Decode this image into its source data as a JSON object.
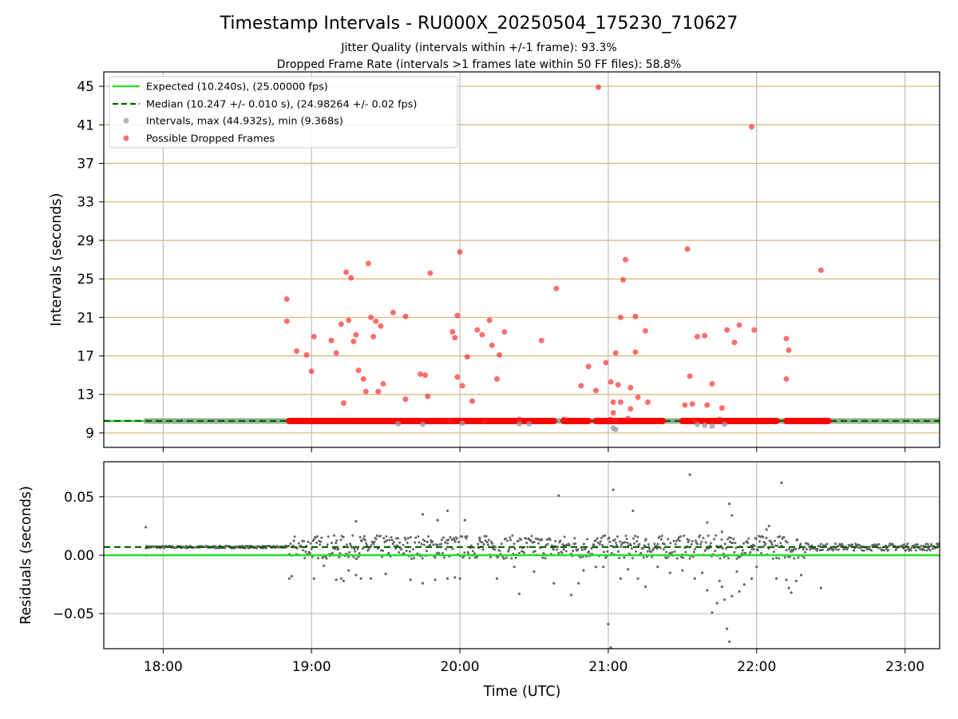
{
  "chart_data": [
    {
      "type": "scatter",
      "title": "Timestamp Intervals - RU000X_20250504_175230_710627",
      "subtitle_lines": [
        "Jitter Quality (intervals within +/-1 frame): 93.3%",
        "Dropped Frame Rate (intervals >1 frames late within 50 FF files): 58.8%"
      ],
      "ylabel": "Intervals (seconds)",
      "xlim": [
        "17:36",
        "23:14"
      ],
      "ylim": [
        7.5,
        46.5
      ],
      "yticks": [
        9,
        13,
        17,
        21,
        25,
        29,
        33,
        37,
        41,
        45
      ],
      "ytick_labels": [
        "9",
        "13",
        "17",
        "21",
        "25",
        "29",
        "33",
        "37",
        "41",
        "45"
      ],
      "grid": true,
      "legend_position": "top-left",
      "expected_interval": 10.24,
      "median_interval": 10.247,
      "series": [
        {
          "name": "Expected (10.240s), (25.00000 fps)",
          "kind": "line",
          "color": "#22e022"
        },
        {
          "name": "Median (10.247 +/- 0.010 s), (24.98264 +/- 0.02 fps)",
          "kind": "dashed-line",
          "color": "#006400"
        },
        {
          "name": "Intervals, max (44.932s), min (9.368s)",
          "kind": "scatter",
          "color": "#999999",
          "baseline_band": [
            [
              "17:53",
              "23:14"
            ]
          ],
          "points": [
            [
              "21:02",
              9.5
            ],
            [
              "21:03",
              9.37
            ],
            [
              "21:36",
              9.9
            ],
            [
              "21:39",
              9.8
            ],
            [
              "21:42",
              9.7
            ],
            [
              "21:47",
              9.9
            ],
            [
              "19:35",
              9.95
            ],
            [
              "20:01",
              10.0
            ],
            [
              "20:24",
              9.95
            ],
            [
              "19:45",
              9.9
            ],
            [
              "20:28",
              9.95
            ]
          ]
        },
        {
          "name": "Possible Dropped Frames",
          "kind": "scatter",
          "color": "#ff2020",
          "baseline_band": [
            [
              "18:51",
              "20:38"
            ],
            [
              "20:42",
              "20:52"
            ],
            [
              "20:55",
              "21:22"
            ],
            [
              "21:30",
              "22:08"
            ],
            [
              "22:12",
              "22:29"
            ]
          ],
          "points": [
            [
              "18:50",
              22.9
            ],
            [
              "18:50",
              20.6
            ],
            [
              "18:54",
              17.5
            ],
            [
              "18:58",
              17.1
            ],
            [
              "19:00",
              15.4
            ],
            [
              "19:01",
              19.0
            ],
            [
              "19:08",
              18.6
            ],
            [
              "19:10",
              17.3
            ],
            [
              "19:12",
              20.3
            ],
            [
              "19:13",
              12.1
            ],
            [
              "19:14",
              25.7
            ],
            [
              "19:15",
              20.7
            ],
            [
              "19:16",
              25.1
            ],
            [
              "19:17",
              18.5
            ],
            [
              "19:18",
              19.2
            ],
            [
              "19:19",
              15.5
            ],
            [
              "19:21",
              14.6
            ],
            [
              "19:22",
              13.3
            ],
            [
              "19:23",
              26.6
            ],
            [
              "19:24",
              21.0
            ],
            [
              "19:25",
              19.0
            ],
            [
              "19:26",
              20.6
            ],
            [
              "19:27",
              13.3
            ],
            [
              "19:28",
              20.1
            ],
            [
              "19:29",
              14.1
            ],
            [
              "19:33",
              21.5
            ],
            [
              "19:38",
              21.1
            ],
            [
              "19:38",
              12.5
            ],
            [
              "19:44",
              15.1
            ],
            [
              "19:46",
              15.0
            ],
            [
              "19:47",
              12.8
            ],
            [
              "19:48",
              25.6
            ],
            [
              "19:56",
              10.3
            ],
            [
              "19:57",
              19.5
            ],
            [
              "19:58",
              18.9
            ],
            [
              "19:59",
              14.8
            ],
            [
              "19:59",
              21.2
            ],
            [
              "20:00",
              27.8
            ],
            [
              "20:01",
              13.9
            ],
            [
              "20:03",
              16.9
            ],
            [
              "20:05",
              12.3
            ],
            [
              "20:07",
              19.7
            ],
            [
              "20:09",
              19.2
            ],
            [
              "20:10",
              10.3
            ],
            [
              "20:12",
              20.7
            ],
            [
              "20:13",
              18.1
            ],
            [
              "20:15",
              14.6
            ],
            [
              "20:16",
              17.1
            ],
            [
              "20:18",
              19.5
            ],
            [
              "20:24",
              10.4
            ],
            [
              "20:33",
              18.6
            ],
            [
              "20:39",
              24.0
            ],
            [
              "20:42",
              10.4
            ],
            [
              "20:49",
              13.9
            ],
            [
              "20:52",
              15.9
            ],
            [
              "20:55",
              13.4
            ],
            [
              "20:56",
              44.9
            ],
            [
              "20:59",
              16.3
            ],
            [
              "21:01",
              14.3
            ],
            [
              "21:01",
              10.4
            ],
            [
              "21:02",
              12.2
            ],
            [
              "21:02",
              11.1
            ],
            [
              "21:03",
              17.3
            ],
            [
              "21:03",
              10.3
            ],
            [
              "21:04",
              14.0
            ],
            [
              "21:05",
              12.2
            ],
            [
              "21:05",
              21.0
            ],
            [
              "21:06",
              24.9
            ],
            [
              "21:07",
              27.0
            ],
            [
              "21:08",
              10.5
            ],
            [
              "21:09",
              11.5
            ],
            [
              "21:09",
              13.7
            ],
            [
              "21:11",
              21.1
            ],
            [
              "21:11",
              17.4
            ],
            [
              "21:12",
              12.7
            ],
            [
              "21:15",
              19.6
            ],
            [
              "21:16",
              12.2
            ],
            [
              "21:31",
              11.9
            ],
            [
              "21:32",
              28.1
            ],
            [
              "21:33",
              14.9
            ],
            [
              "21:34",
              12.0
            ],
            [
              "21:35",
              10.3
            ],
            [
              "21:36",
              19.0
            ],
            [
              "21:39",
              19.1
            ],
            [
              "21:40",
              11.9
            ],
            [
              "21:42",
              14.1
            ],
            [
              "21:45",
              10.4
            ],
            [
              "21:46",
              11.6
            ],
            [
              "21:48",
              19.7
            ],
            [
              "21:51",
              18.4
            ],
            [
              "21:53",
              20.2
            ],
            [
              "21:58",
              40.8
            ],
            [
              "21:59",
              19.7
            ],
            [
              "22:12",
              18.8
            ],
            [
              "22:12",
              14.6
            ],
            [
              "22:13",
              17.6
            ],
            [
              "22:26",
              25.9
            ]
          ]
        }
      ]
    },
    {
      "type": "scatter",
      "title": "",
      "xlabel": "Time (UTC)",
      "ylabel": "Residuals (seconds)",
      "xlim": [
        "17:36",
        "23:14"
      ],
      "ylim": [
        -0.08,
        0.08
      ],
      "yticks": [
        -0.05,
        0.0,
        0.05
      ],
      "ytick_labels": [
        "−0.05",
        "0.00",
        "0.05"
      ],
      "xticks": [
        "18:00",
        "19:00",
        "20:00",
        "21:00",
        "22:00",
        "23:00"
      ],
      "xtick_labels": [
        "18:00",
        "19:00",
        "20:00",
        "21:00",
        "22:00",
        "23:00"
      ],
      "grid": true,
      "median_residual": 0.007,
      "series": [
        {
          "name": "",
          "kind": "line",
          "color": "#22e022",
          "y": 0.0
        },
        {
          "name": "",
          "kind": "dashed-line",
          "color": "#006400",
          "y": 0.007
        },
        {
          "name": "",
          "kind": "scatter",
          "color": "#666666",
          "baseline_band": [
            [
              "17:53",
              "23:14",
              0.007
            ]
          ],
          "points": [
            [
              "17:53",
              0.024
            ],
            [
              "17:53",
              0.0
            ],
            [
              "18:51",
              -0.02
            ],
            [
              "18:52",
              -0.018
            ],
            [
              "19:01",
              -0.02
            ],
            [
              "19:05",
              -0.009
            ],
            [
              "19:10",
              -0.021
            ],
            [
              "19:12",
              -0.02
            ],
            [
              "19:13",
              -0.022
            ],
            [
              "19:15",
              -0.013
            ],
            [
              "19:18",
              -0.017
            ],
            [
              "19:20",
              -0.02
            ],
            [
              "19:24",
              -0.02
            ],
            [
              "19:30",
              -0.016
            ],
            [
              "19:40",
              -0.021
            ],
            [
              "19:45",
              -0.024
            ],
            [
              "19:50",
              -0.021
            ],
            [
              "19:55",
              -0.02
            ],
            [
              "19:58",
              -0.019
            ],
            [
              "20:00",
              -0.02
            ],
            [
              "20:08",
              0.015
            ],
            [
              "20:15",
              -0.02
            ],
            [
              "20:22",
              -0.01
            ],
            [
              "20:24",
              -0.033
            ],
            [
              "20:30",
              -0.014
            ],
            [
              "20:38",
              -0.024
            ],
            [
              "20:42",
              0.005
            ],
            [
              "20:45",
              -0.034
            ],
            [
              "20:48",
              -0.024
            ],
            [
              "20:50",
              -0.013
            ],
            [
              "20:55",
              -0.01
            ],
            [
              "20:58",
              -0.01
            ],
            [
              "20:35",
              0.0
            ],
            [
              "20:40",
              0.051
            ],
            [
              "21:00",
              -0.059
            ],
            [
              "21:01",
              -0.079
            ],
            [
              "21:02",
              0.056
            ],
            [
              "21:05",
              -0.02
            ],
            [
              "21:08",
              -0.012
            ],
            [
              "21:10",
              0.038
            ],
            [
              "21:12",
              -0.02
            ],
            [
              "21:15",
              -0.027
            ],
            [
              "21:20",
              -0.01
            ],
            [
              "21:25",
              -0.015
            ],
            [
              "21:30",
              -0.013
            ],
            [
              "21:33",
              0.069
            ],
            [
              "21:35",
              -0.02
            ],
            [
              "21:38",
              -0.015
            ],
            [
              "21:40",
              -0.03
            ],
            [
              "21:42",
              -0.049
            ],
            [
              "21:44",
              -0.041
            ],
            [
              "21:45",
              -0.022
            ],
            [
              "21:46",
              -0.027
            ],
            [
              "21:47",
              -0.038
            ],
            [
              "21:48",
              -0.063
            ],
            [
              "21:49",
              -0.074
            ],
            [
              "21:50",
              -0.035
            ],
            [
              "21:52",
              -0.014
            ],
            [
              "21:53",
              -0.031
            ],
            [
              "21:55",
              -0.025
            ],
            [
              "21:58",
              -0.02
            ],
            [
              "22:00",
              -0.01
            ],
            [
              "22:08",
              -0.02
            ],
            [
              "22:10",
              0.062
            ],
            [
              "22:12",
              -0.021
            ],
            [
              "22:13",
              -0.028
            ],
            [
              "22:14",
              -0.032
            ],
            [
              "22:16",
              -0.022
            ],
            [
              "22:18",
              -0.017
            ],
            [
              "22:26",
              -0.028
            ],
            [
              "21:50",
              0.034
            ],
            [
              "21:49",
              0.044
            ],
            [
              "21:46",
              0.02
            ],
            [
              "21:40",
              0.028
            ],
            [
              "22:05",
              0.025
            ],
            [
              "22:04",
              0.022
            ],
            [
              "19:55",
              0.038
            ],
            [
              "20:02",
              0.03
            ],
            [
              "19:51",
              0.03
            ],
            [
              "19:45",
              0.035
            ],
            [
              "19:18",
              0.029
            ]
          ]
        }
      ]
    }
  ]
}
